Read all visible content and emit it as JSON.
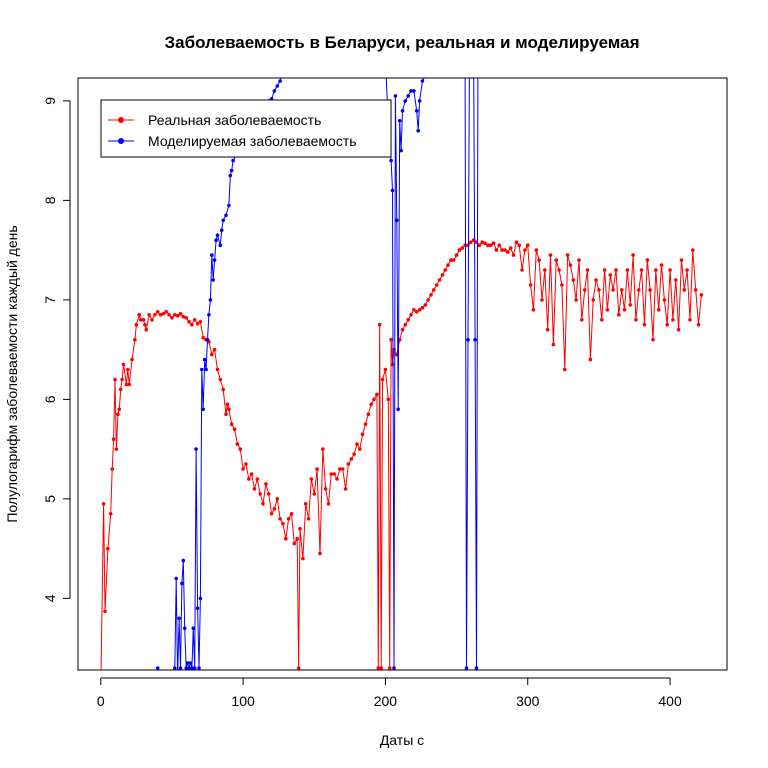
{
  "chart_data": {
    "type": "line",
    "title": "Заболеваемость в Беларуси, реальная и моделируемая",
    "xlabel": "Даты с",
    "ylabel": "Полулогарифм заболеваемости каждый день",
    "xlim": [
      -16,
      440
    ],
    "ylim": [
      3.28,
      9.23
    ],
    "x_ticks": [
      0,
      100,
      200,
      300,
      400
    ],
    "y_ticks": [
      4,
      5,
      6,
      7,
      8,
      9
    ],
    "legend_position": "top-left",
    "series": [
      {
        "name": "Реальная заболеваемость",
        "color": "#ff0000",
        "points": [
          [
            0,
            3.1
          ],
          [
            2,
            4.95
          ],
          [
            3,
            3.87
          ],
          [
            5,
            4.5
          ],
          [
            7,
            4.85
          ],
          [
            8,
            5.3
          ],
          [
            9,
            5.6
          ],
          [
            10,
            6.2
          ],
          [
            11,
            5.5
          ],
          [
            12,
            5.85
          ],
          [
            13,
            5.9
          ],
          [
            14,
            6.1
          ],
          [
            15,
            6.2
          ],
          [
            16,
            6.35
          ],
          [
            18,
            6.15
          ],
          [
            19,
            6.3
          ],
          [
            20,
            6.15
          ],
          [
            22,
            6.4
          ],
          [
            24,
            6.6
          ],
          [
            25,
            6.75
          ],
          [
            27,
            6.85
          ],
          [
            28,
            6.8
          ],
          [
            30,
            6.8
          ],
          [
            31,
            6.75
          ],
          [
            32,
            6.7
          ],
          [
            34,
            6.85
          ],
          [
            36,
            6.8
          ],
          [
            38,
            6.85
          ],
          [
            40,
            6.88
          ],
          [
            42,
            6.85
          ],
          [
            44,
            6.86
          ],
          [
            46,
            6.88
          ],
          [
            48,
            6.85
          ],
          [
            50,
            6.82
          ],
          [
            52,
            6.85
          ],
          [
            54,
            6.84
          ],
          [
            56,
            6.86
          ],
          [
            58,
            6.83
          ],
          [
            60,
            6.82
          ],
          [
            62,
            6.78
          ],
          [
            64,
            6.75
          ],
          [
            66,
            6.8
          ],
          [
            68,
            6.76
          ],
          [
            70,
            6.78
          ],
          [
            72,
            6.62
          ],
          [
            74,
            6.6
          ],
          [
            76,
            6.58
          ],
          [
            78,
            6.45
          ],
          [
            80,
            6.5
          ],
          [
            82,
            6.3
          ],
          [
            84,
            6.2
          ],
          [
            86,
            6.1
          ],
          [
            88,
            5.85
          ],
          [
            89,
            5.95
          ],
          [
            90,
            5.9
          ],
          [
            92,
            5.75
          ],
          [
            94,
            5.7
          ],
          [
            96,
            5.55
          ],
          [
            98,
            5.5
          ],
          [
            100,
            5.3
          ],
          [
            102,
            5.35
          ],
          [
            104,
            5.2
          ],
          [
            106,
            5.25
          ],
          [
            108,
            5.1
          ],
          [
            110,
            5.2
          ],
          [
            112,
            5.05
          ],
          [
            114,
            4.95
          ],
          [
            116,
            5.15
          ],
          [
            118,
            5.05
          ],
          [
            120,
            4.85
          ],
          [
            122,
            4.9
          ],
          [
            124,
            5.0
          ],
          [
            126,
            4.8
          ],
          [
            128,
            4.75
          ],
          [
            130,
            4.6
          ],
          [
            132,
            4.8
          ],
          [
            134,
            4.85
          ],
          [
            136,
            4.55
          ],
          [
            138,
            4.6
          ],
          [
            139,
            3.3
          ],
          [
            140,
            4.7
          ],
          [
            142,
            4.4
          ],
          [
            144,
            4.95
          ],
          [
            146,
            4.8
          ],
          [
            148,
            5.2
          ],
          [
            150,
            5.05
          ],
          [
            152,
            5.3
          ],
          [
            154,
            4.45
          ],
          [
            156,
            5.5
          ],
          [
            158,
            5.1
          ],
          [
            160,
            4.95
          ],
          [
            162,
            5.25
          ],
          [
            164,
            5.25
          ],
          [
            166,
            5.2
          ],
          [
            168,
            5.3
          ],
          [
            170,
            5.3
          ],
          [
            172,
            5.1
          ],
          [
            174,
            5.35
          ],
          [
            176,
            5.4
          ],
          [
            178,
            5.45
          ],
          [
            180,
            5.55
          ],
          [
            182,
            5.5
          ],
          [
            184,
            5.65
          ],
          [
            186,
            5.75
          ],
          [
            188,
            5.85
          ],
          [
            190,
            5.95
          ],
          [
            192,
            6.0
          ],
          [
            194,
            6.05
          ],
          [
            195,
            3.3
          ],
          [
            196,
            6.75
          ],
          [
            197,
            3.3
          ],
          [
            198,
            6.2
          ],
          [
            200,
            6.3
          ],
          [
            202,
            6.0
          ],
          [
            203,
            3.3
          ],
          [
            204,
            6.6
          ],
          [
            205,
            6.35
          ],
          [
            206,
            6.5
          ],
          [
            208,
            6.45
          ],
          [
            210,
            6.6
          ],
          [
            212,
            6.7
          ],
          [
            214,
            6.75
          ],
          [
            216,
            6.8
          ],
          [
            218,
            6.85
          ],
          [
            220,
            6.9
          ],
          [
            222,
            6.88
          ],
          [
            224,
            6.9
          ],
          [
            226,
            6.92
          ],
          [
            228,
            6.95
          ],
          [
            230,
            7.0
          ],
          [
            232,
            7.05
          ],
          [
            234,
            7.1
          ],
          [
            236,
            7.15
          ],
          [
            238,
            7.2
          ],
          [
            240,
            7.25
          ],
          [
            242,
            7.3
          ],
          [
            244,
            7.35
          ],
          [
            246,
            7.4
          ],
          [
            248,
            7.4
          ],
          [
            250,
            7.45
          ],
          [
            252,
            7.5
          ],
          [
            254,
            7.52
          ],
          [
            256,
            7.55
          ],
          [
            258,
            7.55
          ],
          [
            260,
            7.58
          ],
          [
            262,
            7.6
          ],
          [
            264,
            7.58
          ],
          [
            266,
            7.55
          ],
          [
            268,
            7.58
          ],
          [
            270,
            7.57
          ],
          [
            272,
            7.55
          ],
          [
            274,
            7.55
          ],
          [
            276,
            7.57
          ],
          [
            278,
            7.5
          ],
          [
            280,
            7.55
          ],
          [
            282,
            7.5
          ],
          [
            284,
            7.5
          ],
          [
            286,
            7.48
          ],
          [
            288,
            7.52
          ],
          [
            290,
            7.45
          ],
          [
            292,
            7.58
          ],
          [
            294,
            7.55
          ],
          [
            296,
            7.3
          ],
          [
            298,
            7.5
          ],
          [
            300,
            7.55
          ],
          [
            302,
            7.15
          ],
          [
            304,
            6.9
          ],
          [
            306,
            7.5
          ],
          [
            308,
            7.4
          ],
          [
            310,
            7.0
          ],
          [
            312,
            7.3
          ],
          [
            314,
            6.7
          ],
          [
            316,
            7.45
          ],
          [
            318,
            6.55
          ],
          [
            320,
            7.4
          ],
          [
            322,
            7.3
          ],
          [
            324,
            7.15
          ],
          [
            326,
            6.3
          ],
          [
            328,
            7.45
          ],
          [
            330,
            7.35
          ],
          [
            332,
            7.2
          ],
          [
            334,
            7.0
          ],
          [
            336,
            7.4
          ],
          [
            338,
            6.8
          ],
          [
            340,
            7.1
          ],
          [
            342,
            7.3
          ],
          [
            344,
            6.4
          ],
          [
            346,
            7.0
          ],
          [
            348,
            7.2
          ],
          [
            350,
            7.1
          ],
          [
            352,
            6.8
          ],
          [
            354,
            7.3
          ],
          [
            356,
            6.9
          ],
          [
            358,
            7.25
          ],
          [
            360,
            7.1
          ],
          [
            362,
            7.3
          ],
          [
            364,
            6.85
          ],
          [
            366,
            7.1
          ],
          [
            368,
            6.9
          ],
          [
            370,
            7.3
          ],
          [
            372,
            6.95
          ],
          [
            374,
            7.45
          ],
          [
            376,
            6.8
          ],
          [
            378,
            7.1
          ],
          [
            380,
            7.3
          ],
          [
            382,
            6.75
          ],
          [
            384,
            7.4
          ],
          [
            386,
            7.1
          ],
          [
            388,
            6.6
          ],
          [
            390,
            7.3
          ],
          [
            392,
            6.9
          ],
          [
            394,
            7.35
          ],
          [
            396,
            7.0
          ],
          [
            398,
            6.75
          ],
          [
            400,
            7.3
          ],
          [
            402,
            6.8
          ],
          [
            404,
            7.2
          ],
          [
            406,
            6.7
          ],
          [
            408,
            7.4
          ],
          [
            410,
            7.1
          ],
          [
            412,
            7.3
          ],
          [
            414,
            6.8
          ],
          [
            416,
            7.5
          ],
          [
            418,
            7.1
          ],
          [
            420,
            6.75
          ],
          [
            422,
            7.05
          ]
        ]
      },
      {
        "name": "Моделируемая заболеваемость",
        "color": "#0000ff",
        "points": [
          [
            40,
            3.3
          ],
          [
            42,
            3.25
          ],
          [
            44,
            3.2
          ],
          [
            46,
            3.1
          ],
          [
            48,
            2.9
          ],
          [
            50,
            3.1
          ],
          [
            52,
            3.3
          ],
          [
            53,
            4.2
          ],
          [
            54,
            3.2
          ],
          [
            55,
            3.8
          ],
          [
            56,
            3.3
          ],
          [
            57,
            4.15
          ],
          [
            58,
            4.38
          ],
          [
            59,
            3.7
          ],
          [
            60,
            3.3
          ],
          [
            61,
            3.35
          ],
          [
            62,
            3.3
          ],
          [
            63,
            3.35
          ],
          [
            64,
            3.3
          ],
          [
            65,
            3.7
          ],
          [
            66,
            3.3
          ],
          [
            67,
            5.5
          ],
          [
            68,
            3.9
          ],
          [
            69,
            3.3
          ],
          [
            70,
            4.0
          ],
          [
            71,
            6.3
          ],
          [
            72,
            5.9
          ],
          [
            73,
            6.4
          ],
          [
            74,
            6.3
          ],
          [
            75,
            6.6
          ],
          [
            76,
            6.85
          ],
          [
            77,
            7.0
          ],
          [
            78,
            7.45
          ],
          [
            79,
            7.2
          ],
          [
            80,
            7.4
          ],
          [
            81,
            7.6
          ],
          [
            82,
            7.65
          ],
          [
            84,
            7.55
          ],
          [
            85,
            7.7
          ],
          [
            86,
            7.8
          ],
          [
            88,
            7.85
          ],
          [
            90,
            7.95
          ],
          [
            91,
            8.25
          ],
          [
            92,
            8.3
          ],
          [
            93,
            8.4
          ],
          [
            95,
            8.45
          ],
          [
            97,
            8.55
          ],
          [
            100,
            8.65
          ],
          [
            103,
            8.7
          ],
          [
            106,
            8.8
          ],
          [
            110,
            8.85
          ],
          [
            113,
            8.9
          ],
          [
            116,
            8.95
          ],
          [
            118,
            9.0
          ],
          [
            120,
            9.02
          ],
          [
            122,
            9.1
          ],
          [
            124,
            9.15
          ],
          [
            126,
            9.2
          ],
          [
            128,
            9.3
          ],
          [
            200,
            9.4
          ],
          [
            203,
            8.5
          ],
          [
            204,
            8.4
          ],
          [
            205,
            8.1
          ],
          [
            206,
            3.3
          ],
          [
            207,
            9.05
          ],
          [
            208,
            7.8
          ],
          [
            209,
            5.9
          ],
          [
            210,
            8.8
          ],
          [
            211,
            8.5
          ],
          [
            212,
            8.9
          ],
          [
            214,
            9.0
          ],
          [
            216,
            9.05
          ],
          [
            218,
            9.1
          ],
          [
            220,
            9.1
          ],
          [
            222,
            8.9
          ],
          [
            223,
            8.7
          ],
          [
            224,
            9.0
          ],
          [
            226,
            9.2
          ],
          [
            228,
            9.25
          ],
          [
            256,
            9.3
          ],
          [
            257,
            3.3
          ],
          [
            258,
            6.6
          ],
          [
            259,
            9.3
          ],
          [
            262,
            9.3
          ],
          [
            263,
            6.6
          ],
          [
            264,
            3.3
          ],
          [
            265,
            9.3
          ]
        ]
      }
    ]
  }
}
